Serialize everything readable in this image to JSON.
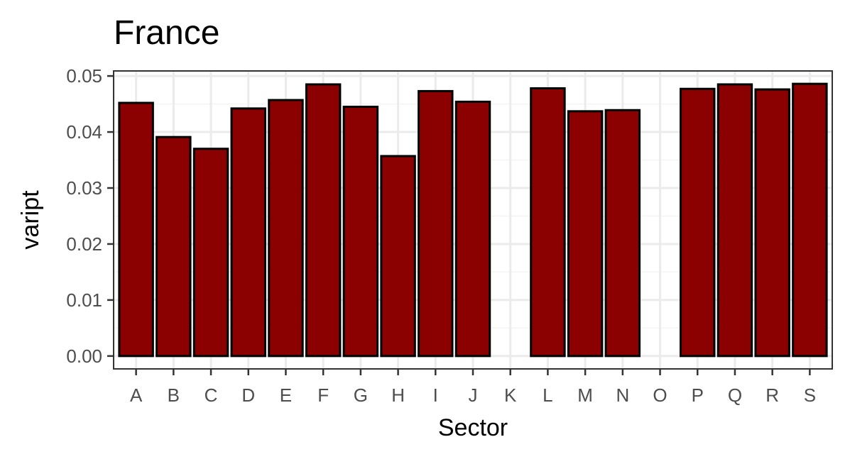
{
  "chart_data": {
    "type": "bar",
    "title": "France",
    "xlabel": "Sector",
    "ylabel": "vaript",
    "categories": [
      "A",
      "B",
      "C",
      "D",
      "E",
      "F",
      "G",
      "H",
      "I",
      "J",
      "K",
      "L",
      "M",
      "N",
      "O",
      "P",
      "Q",
      "R",
      "S"
    ],
    "values": [
      0.0452,
      0.0391,
      0.037,
      0.0442,
      0.0457,
      0.0485,
      0.0445,
      0.0357,
      0.0473,
      0.0454,
      null,
      0.0478,
      0.0437,
      0.0439,
      null,
      0.0477,
      0.0485,
      0.0476,
      0.0486
    ],
    "ylim": [
      -0.0023,
      0.0509
    ],
    "yticks": [
      0.0,
      0.01,
      0.02,
      0.03,
      0.04,
      0.05
    ],
    "ytick_labels": [
      "0.00",
      "0.01",
      "0.02",
      "0.03",
      "0.04",
      "0.05"
    ],
    "grid": true,
    "legend": "none",
    "colors": {
      "bar_fill": "#8b0000",
      "bar_stroke": "#000000",
      "grid_major": "#ebebeb",
      "grid_minor": "#f4f4f4",
      "panel_border": "#333333",
      "tick_text": "#4d4d4d"
    }
  }
}
